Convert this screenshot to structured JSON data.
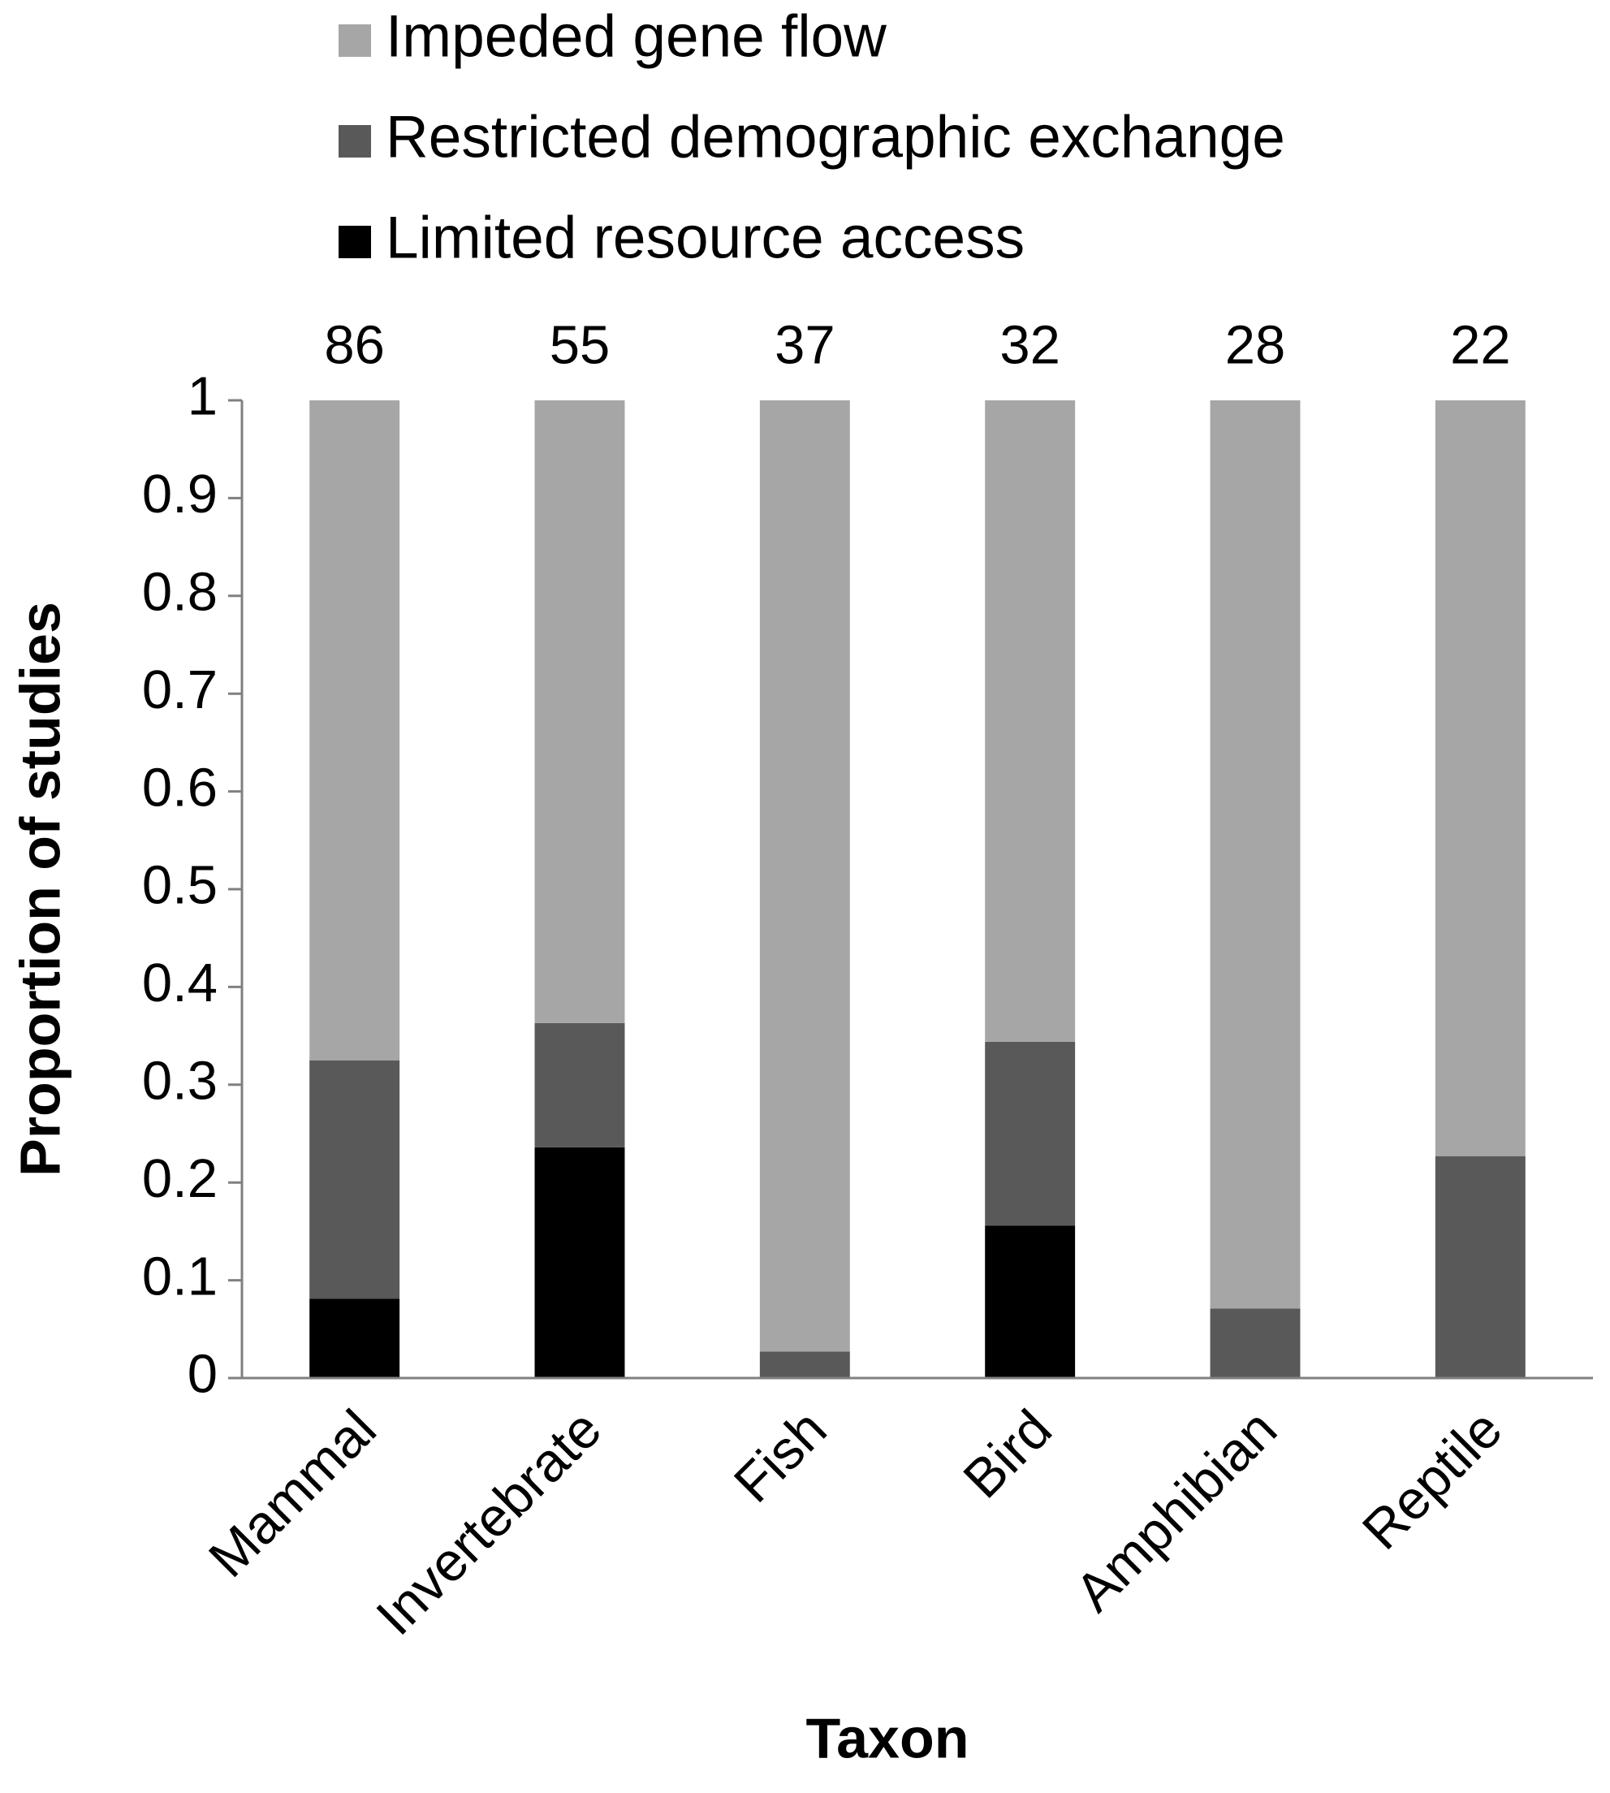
{
  "chart_data": {
    "type": "stacked_bar",
    "y_label": "Proportion of studies",
    "x_label": "Taxon",
    "categories": [
      "Mammal",
      "Invertebrate",
      "Fish",
      "Bird",
      "Amphibian",
      "Reptile"
    ],
    "annotations": [
      86,
      55,
      37,
      32,
      28,
      22
    ],
    "series": [
      {
        "name": "Limited resource access",
        "color": "#000000",
        "values": [
          0.081,
          0.236,
          0,
          0.156,
          0,
          0
        ]
      },
      {
        "name": "Restricted demographic exchange",
        "color": "#595959",
        "values": [
          0.244,
          0.127,
          0.027,
          0.188,
          0.071,
          0.227
        ]
      },
      {
        "name": "Impeded gene flow",
        "color": "#a6a6a6",
        "values": [
          0.675,
          0.637,
          0.973,
          0.656,
          0.929,
          0.773
        ]
      }
    ],
    "ylim": [
      0,
      1
    ],
    "yticks": [
      0,
      0.1,
      0.2,
      0.3,
      0.4,
      0.5,
      0.6,
      0.7,
      0.8,
      0.9,
      1
    ],
    "legend": "top"
  }
}
